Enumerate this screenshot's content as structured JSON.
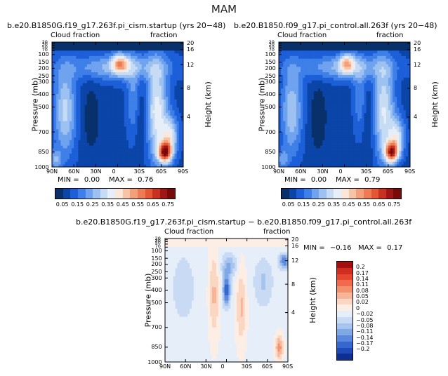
{
  "page": {
    "season_title": "MAM"
  },
  "colors": {
    "frame": "#000000",
    "background": "#ffffff"
  },
  "chart_data": [
    {
      "type": "heatmap",
      "id": "panel-left",
      "title": "b.e20.B1850G.f19_g17.263f.pi_cism.startup (yrs 20−48)",
      "left_label": "Cloud fraction",
      "right_label": "fraction",
      "ylabel": "Pressure (mb)",
      "ylabel_right": "Height (km)",
      "x_ticks": [
        "90N",
        "60N",
        "30N",
        "0",
        "30S",
        "60S",
        "90S"
      ],
      "y_ticks": [
        "1000",
        "850",
        "700",
        "500",
        "400",
        "300",
        "250",
        "200",
        "150",
        "100",
        "70",
        "50",
        "30",
        "20"
      ],
      "y_ticks_right": [
        "20",
        "16",
        "12",
        "8",
        "4"
      ],
      "stats": {
        "min_label": "MIN =",
        "min": "0.00",
        "max_label": "MAX =",
        "max": "0.76"
      },
      "colorbar": {
        "labels": [
          "0.05",
          "0.15",
          "0.25",
          "0.35",
          "0.45",
          "0.55",
          "0.65",
          "0.75"
        ],
        "colors": [
          "#08306b",
          "#0b45a8",
          "#1c5fd8",
          "#3f7fe8",
          "#6fa3ef",
          "#9dc2f2",
          "#c6dcf5",
          "#e8eef8",
          "#fbe6da",
          "#f7c4a5",
          "#f3a07a",
          "#ef7b54",
          "#e45634",
          "#c8301f",
          "#a01515",
          "#7a0a0a"
        ]
      },
      "zmin": 0.0,
      "zmax": 0.76
    },
    {
      "type": "heatmap",
      "id": "panel-right",
      "title": "b.e20.B1850.f09_g17.pi_control.all.263f (yrs 20−48)",
      "left_label": "Cloud fraction",
      "right_label": "fraction",
      "ylabel": "Pressure (mb)",
      "ylabel_right": "Height (km)",
      "x_ticks": [
        "90N",
        "60N",
        "30N",
        "0",
        "30S",
        "60S",
        "90S"
      ],
      "y_ticks": [
        "1000",
        "850",
        "700",
        "500",
        "400",
        "300",
        "250",
        "200",
        "150",
        "100",
        "70",
        "50",
        "30",
        "20"
      ],
      "y_ticks_right": [
        "20",
        "16",
        "12",
        "8",
        "4"
      ],
      "stats": {
        "min_label": "MIN =",
        "min": "0.00",
        "max_label": "MAX =",
        "max": "0.79"
      },
      "colorbar": {
        "labels": [
          "0.05",
          "0.15",
          "0.25",
          "0.35",
          "0.45",
          "0.55",
          "0.65",
          "0.75"
        ],
        "colors": [
          "#08306b",
          "#0b45a8",
          "#1c5fd8",
          "#3f7fe8",
          "#6fa3ef",
          "#9dc2f2",
          "#c6dcf5",
          "#e8eef8",
          "#fbe6da",
          "#f7c4a5",
          "#f3a07a",
          "#ef7b54",
          "#e45634",
          "#c8301f",
          "#a01515",
          "#7a0a0a"
        ]
      },
      "zmin": 0.0,
      "zmax": 0.79
    },
    {
      "type": "heatmap",
      "id": "panel-diff",
      "title": "b.e20.B1850G.f19_g17.263f.pi_cism.startup − b.e20.B1850.f09_g17.pi_control.all.263f",
      "left_label": "Cloud fraction",
      "right_label": "fraction",
      "ylabel": "Pressure (mb)",
      "ylabel_right": "Height (km)",
      "x_ticks": [
        "90N",
        "60N",
        "30N",
        "0",
        "30S",
        "60S",
        "90S"
      ],
      "y_ticks": [
        "1000",
        "850",
        "700",
        "500",
        "400",
        "300",
        "250",
        "200",
        "150",
        "100",
        "70",
        "50",
        "30",
        "20"
      ],
      "y_ticks_right": [
        "20",
        "16",
        "12",
        "8",
        "4"
      ],
      "stats": {
        "min_label": "MIN =",
        "min": "−0.16",
        "max_label": "MAX =",
        "max": "0.17"
      },
      "colorbar": {
        "labels": [
          "0.2",
          "0.17",
          "0.14",
          "0.11",
          "0.08",
          "0.05",
          "0.02",
          "0",
          "−0.02",
          "−0.05",
          "−0.08",
          "−0.11",
          "−0.14",
          "−0.17",
          "−0.2"
        ],
        "colors": [
          "#a50f0f",
          "#d02d22",
          "#e8472f",
          "#f06a4d",
          "#f5906f",
          "#f8b498",
          "#fbd6c2",
          "#fdeee5",
          "#e6eefa",
          "#c8daf4",
          "#a7c4ee",
          "#7fa8e6",
          "#5a88dc",
          "#3567cf",
          "#1f4ab8",
          "#0d2f8f"
        ]
      },
      "zmin": -0.16,
      "zmax": 0.17
    }
  ]
}
